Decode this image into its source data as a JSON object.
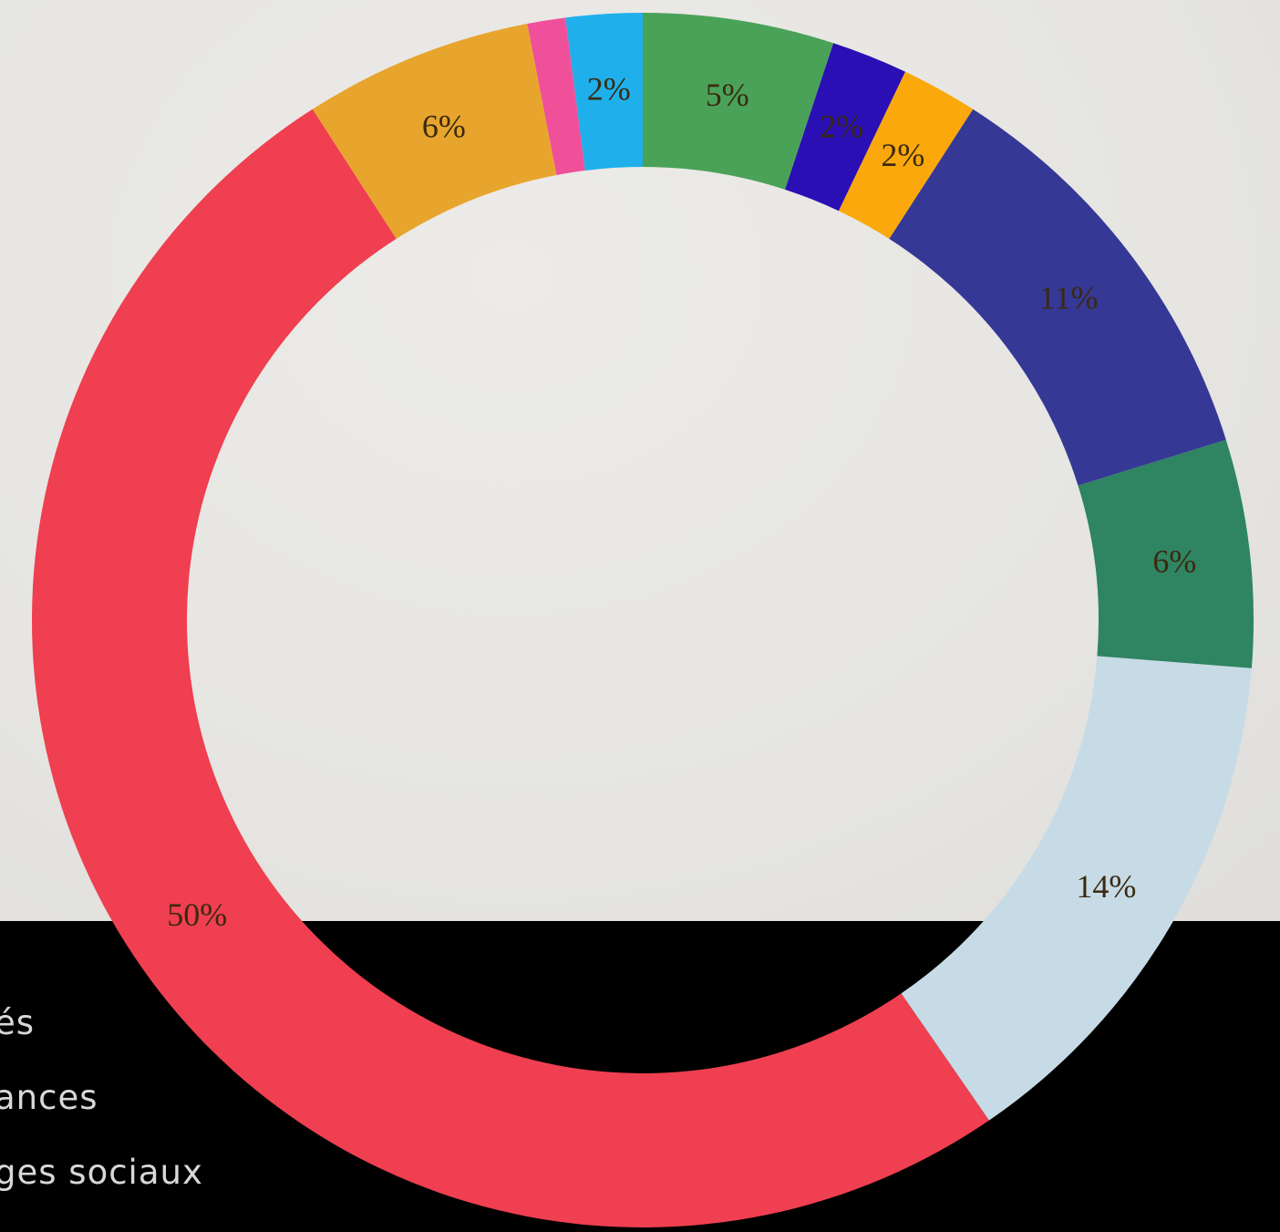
{
  "legend": {
    "items": [
      {
        "label": "és"
      },
      {
        "label": "ances"
      },
      {
        "label": "ges sociaux"
      }
    ]
  },
  "chart_data": {
    "type": "pie",
    "donut": true,
    "title": "",
    "start": "top",
    "direction": "counterclockwise",
    "slices": [
      {
        "label": "2%",
        "value": 2,
        "color": "#1fb0ec",
        "label_color": "#1a4a70"
      },
      {
        "label": "",
        "value": 1,
        "color": "#f0509a",
        "label_color": "#3a2a10"
      },
      {
        "label": "6%",
        "value": 6,
        "color": "#e8a52d",
        "label_color": "#4a2e05"
      },
      {
        "label": "50%",
        "value": 50,
        "color": "#ef3f50",
        "label_color": "#6a1520"
      },
      {
        "label": "14%",
        "value": 14,
        "color": "#c7dbe6",
        "label_color": "#2a2a2a"
      },
      {
        "label": "6%",
        "value": 6,
        "color": "#2f8462",
        "label_color": "#0f2a1e"
      },
      {
        "label": "11%",
        "value": 11,
        "color": "#353895",
        "label_color": "#c8cae8"
      },
      {
        "label": "2%",
        "value": 2,
        "color": "#fba80c",
        "label_color": "#3a2a10"
      },
      {
        "label": "2%",
        "value": 2,
        "color": "#2a0fb4",
        "label_color": "#2a1a4a"
      },
      {
        "label": "5%",
        "value": 5,
        "color": "#4aa259",
        "label_color": "#10301a"
      }
    ]
  }
}
